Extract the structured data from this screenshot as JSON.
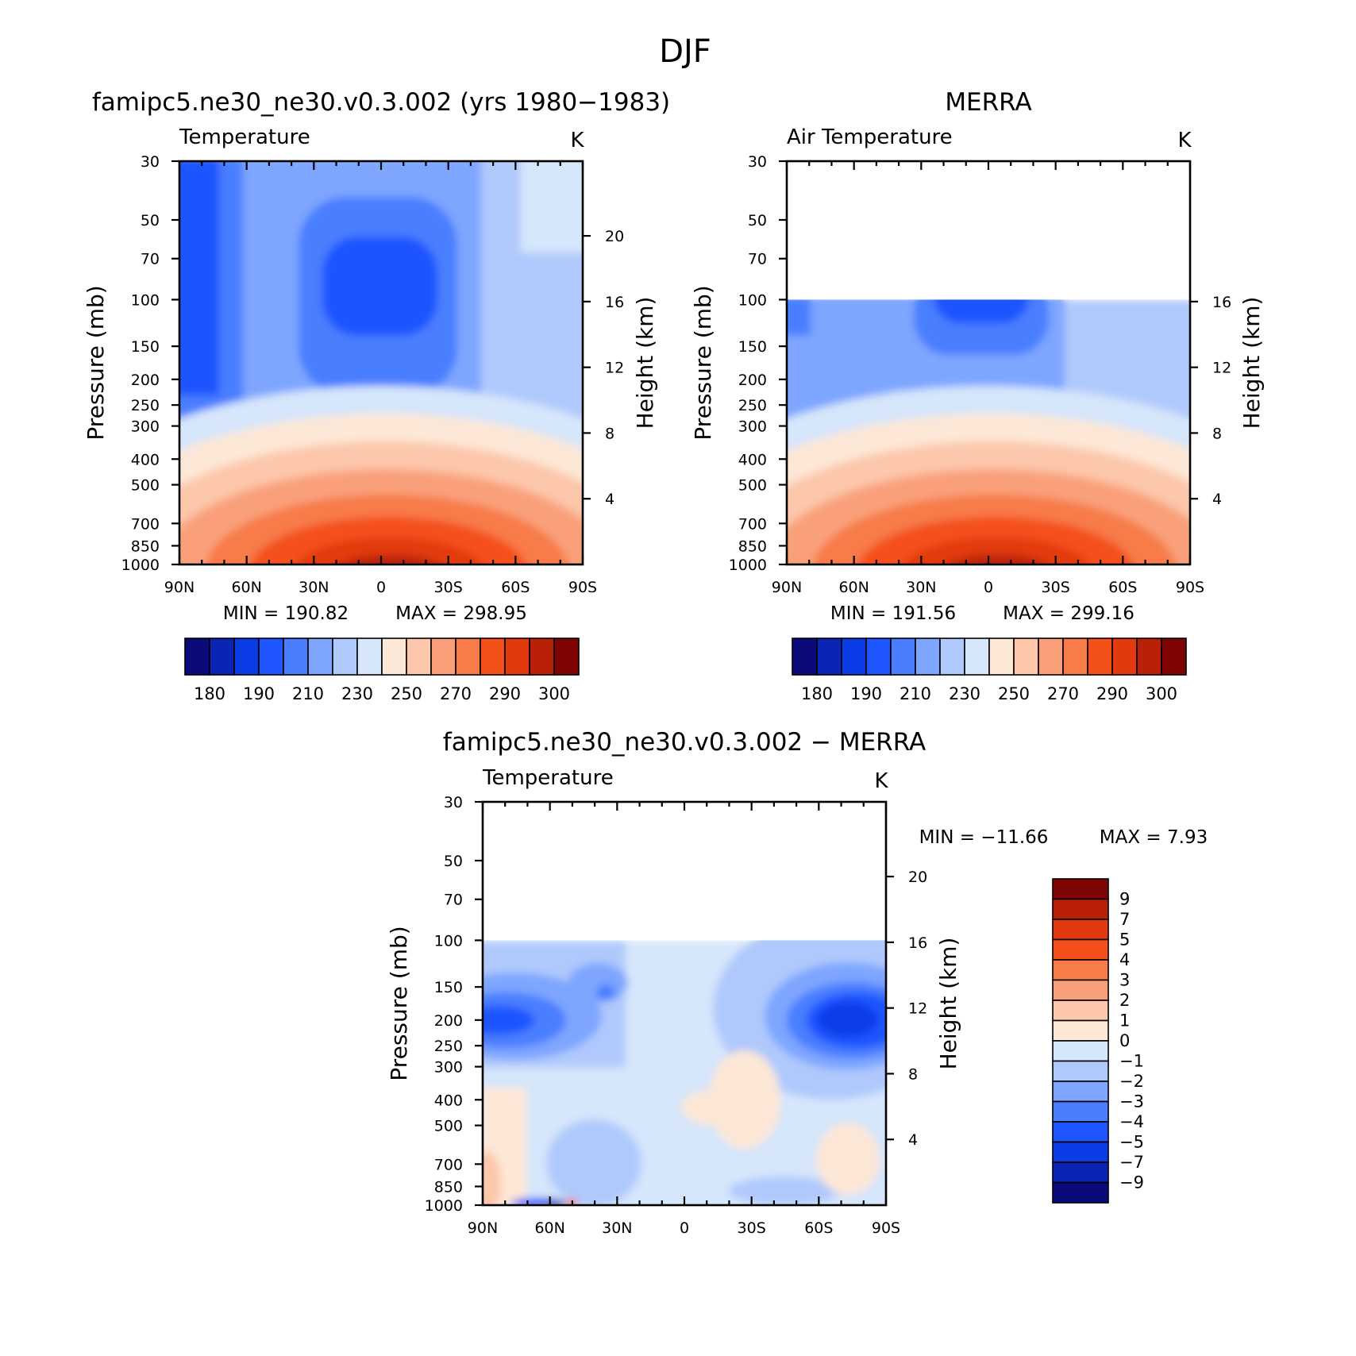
{
  "figure": {
    "main_title": "DJF"
  },
  "chart_data": [
    {
      "type": "contour",
      "id": "model",
      "title": "famipc5.ne30_ne30.v0.3.002 (yrs 1980−1983)",
      "variable": "Temperature",
      "units": "K",
      "ylabel": "Pressure  (mb)",
      "ylabel2": "Height  (km)",
      "x_ticks": [
        "90N",
        "60N",
        "30N",
        "0",
        "30S",
        "60S",
        "90S"
      ],
      "y_ticks": [
        "30",
        "50",
        "70",
        "100",
        "150",
        "200",
        "250",
        "300",
        "400",
        "500",
        "700",
        "850",
        "1000"
      ],
      "height_ticks": [
        "20",
        "16",
        "12",
        "8",
        "4"
      ],
      "ylim": [
        1000,
        30
      ],
      "min_label": "MIN  =  190.82",
      "max_label": "MAX  =  298.95",
      "min": 190.82,
      "max": 298.95,
      "data_top_mb": 30
    },
    {
      "type": "contour",
      "id": "obs",
      "title": "MERRA",
      "variable": "Air Temperature",
      "units": "K",
      "ylabel": "Pressure  (mb)",
      "ylabel2": "Height  (km)",
      "x_ticks": [
        "90N",
        "60N",
        "30N",
        "0",
        "30S",
        "60S",
        "90S"
      ],
      "y_ticks": [
        "30",
        "50",
        "70",
        "100",
        "150",
        "200",
        "250",
        "300",
        "400",
        "500",
        "700",
        "850",
        "1000"
      ],
      "height_ticks": [
        "16",
        "12",
        "8",
        "4"
      ],
      "ylim": [
        1000,
        30
      ],
      "min_label": "MIN  =  191.56",
      "max_label": "MAX  =  299.16",
      "min": 191.56,
      "max": 299.16,
      "data_top_mb": 100
    },
    {
      "type": "contour",
      "id": "diff",
      "title": "famipc5.ne30_ne30.v0.3.002 − MERRA",
      "variable": "Temperature",
      "units": "K",
      "ylabel": "Pressure  (mb)",
      "ylabel2": "Height  (km)",
      "x_ticks": [
        "90N",
        "60N",
        "30N",
        "0",
        "30S",
        "60S",
        "90S"
      ],
      "y_ticks": [
        "30",
        "50",
        "70",
        "100",
        "150",
        "200",
        "250",
        "300",
        "400",
        "500",
        "700",
        "850",
        "1000"
      ],
      "height_ticks": [
        "20",
        "16",
        "12",
        "8",
        "4"
      ],
      "ylim": [
        1000,
        30
      ],
      "min_label": "MIN  =  −11.66",
      "max_label": "MAX  =     7.93",
      "min": -11.66,
      "max": 7.93,
      "data_top_mb": 100
    }
  ],
  "colorbars": {
    "temperature": {
      "colors": [
        "#0a0a7a",
        "#0a24b4",
        "#0b3de6",
        "#1e55ff",
        "#4a7eff",
        "#7ea6ff",
        "#b0c9fc",
        "#d6e6fb",
        "#fde7d6",
        "#fcc7ab",
        "#f9a07a",
        "#f77c4a",
        "#f4501a",
        "#e23a0e",
        "#b82008",
        "#7f0404"
      ],
      "labels": [
        "180",
        "190",
        "210",
        "230",
        "250",
        "270",
        "290",
        "300"
      ]
    },
    "difference": {
      "colors": [
        "#7f0404",
        "#b82008",
        "#e23a0e",
        "#f4501a",
        "#f77c4a",
        "#f9a07a",
        "#fcc7ab",
        "#fde7d6",
        "#d6e6fb",
        "#b0c9fc",
        "#7ea6ff",
        "#4a7eff",
        "#1e55ff",
        "#0b3de6",
        "#0a24b4",
        "#0a0a7a"
      ],
      "labels": [
        "9",
        "7",
        "5",
        "4",
        "3",
        "2",
        "1",
        "0",
        "−1",
        "−2",
        "−3",
        "−4",
        "−5",
        "−7",
        "−9"
      ]
    }
  }
}
